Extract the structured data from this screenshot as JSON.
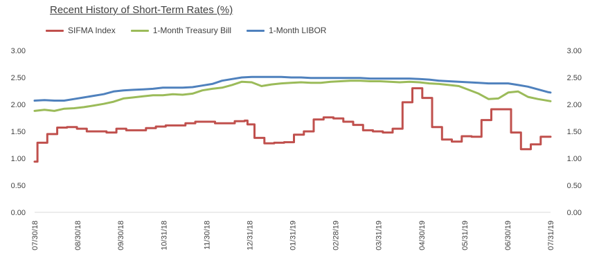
{
  "chart_data": {
    "type": "line",
    "title": "Recent History of Short-Term Rates (%)",
    "xlabel": "",
    "ylabel": "",
    "ylim": [
      0,
      3
    ],
    "y_ticks": [
      "0.00",
      "0.50",
      "1.00",
      "1.50",
      "2.00",
      "2.50",
      "3.00"
    ],
    "y_ticks_right": [
      "0.00",
      "0.50",
      "1.00",
      "1.50",
      "2.00",
      "2.50",
      "3.00"
    ],
    "x_ticks": [
      "07/30/18",
      "08/30/18",
      "09/30/18",
      "10/31/18",
      "11/30/18",
      "12/31/18",
      "01/31/19",
      "02/28/19",
      "03/31/19",
      "04/30/19",
      "05/31/19",
      "06/30/19",
      "07/31/19"
    ],
    "grid": false,
    "legend_position": "top-left",
    "series": [
      {
        "name": "SIFMA Index",
        "color": "#c0504d",
        "step": true,
        "points": [
          [
            "2018-07-30",
            0.94
          ],
          [
            "2018-08-01",
            1.29
          ],
          [
            "2018-08-08",
            1.45
          ],
          [
            "2018-08-15",
            1.57
          ],
          [
            "2018-08-22",
            1.58
          ],
          [
            "2018-08-29",
            1.55
          ],
          [
            "2018-09-05",
            1.5
          ],
          [
            "2018-09-19",
            1.48
          ],
          [
            "2018-09-26",
            1.55
          ],
          [
            "2018-10-03",
            1.52
          ],
          [
            "2018-10-17",
            1.56
          ],
          [
            "2018-10-24",
            1.59
          ],
          [
            "2018-10-31",
            1.61
          ],
          [
            "2018-11-14",
            1.65
          ],
          [
            "2018-11-21",
            1.68
          ],
          [
            "2018-12-05",
            1.65
          ],
          [
            "2018-12-19",
            1.69
          ],
          [
            "2018-12-26",
            1.7
          ],
          [
            "2018-12-28",
            1.63
          ],
          [
            "2019-01-02",
            1.38
          ],
          [
            "2019-01-09",
            1.28
          ],
          [
            "2019-01-16",
            1.29
          ],
          [
            "2019-01-23",
            1.3
          ],
          [
            "2019-01-30",
            1.44
          ],
          [
            "2019-02-06",
            1.5
          ],
          [
            "2019-02-13",
            1.72
          ],
          [
            "2019-02-20",
            1.76
          ],
          [
            "2019-02-27",
            1.74
          ],
          [
            "2019-03-06",
            1.68
          ],
          [
            "2019-03-13",
            1.62
          ],
          [
            "2019-03-20",
            1.52
          ],
          [
            "2019-03-27",
            1.5
          ],
          [
            "2019-04-03",
            1.48
          ],
          [
            "2019-04-10",
            1.55
          ],
          [
            "2019-04-17",
            2.04
          ],
          [
            "2019-04-24",
            2.3
          ],
          [
            "2019-05-01",
            2.12
          ],
          [
            "2019-05-08",
            1.58
          ],
          [
            "2019-05-15",
            1.35
          ],
          [
            "2019-05-22",
            1.31
          ],
          [
            "2019-05-29",
            1.41
          ],
          [
            "2019-06-05",
            1.4
          ],
          [
            "2019-06-12",
            1.71
          ],
          [
            "2019-06-19",
            1.91
          ],
          [
            "2019-07-03",
            1.48
          ],
          [
            "2019-07-10",
            1.17
          ],
          [
            "2019-07-17",
            1.26
          ],
          [
            "2019-07-24",
            1.4
          ],
          [
            "2019-07-31",
            1.4
          ]
        ]
      },
      {
        "name": "1-Month Treasury Bill",
        "color": "#9bbb59",
        "step": false,
        "points": [
          [
            "2018-07-30",
            1.88
          ],
          [
            "2018-08-06",
            1.9
          ],
          [
            "2018-08-13",
            1.88
          ],
          [
            "2018-08-20",
            1.92
          ],
          [
            "2018-08-27",
            1.93
          ],
          [
            "2018-09-03",
            1.95
          ],
          [
            "2018-09-10",
            1.98
          ],
          [
            "2018-09-17",
            2.01
          ],
          [
            "2018-09-24",
            2.05
          ],
          [
            "2018-10-01",
            2.11
          ],
          [
            "2018-10-08",
            2.13
          ],
          [
            "2018-10-15",
            2.15
          ],
          [
            "2018-10-22",
            2.17
          ],
          [
            "2018-10-29",
            2.17
          ],
          [
            "2018-11-05",
            2.19
          ],
          [
            "2018-11-12",
            2.18
          ],
          [
            "2018-11-19",
            2.2
          ],
          [
            "2018-11-26",
            2.26
          ],
          [
            "2018-12-03",
            2.29
          ],
          [
            "2018-12-10",
            2.31
          ],
          [
            "2018-12-17",
            2.36
          ],
          [
            "2018-12-24",
            2.42
          ],
          [
            "2018-12-31",
            2.41
          ],
          [
            "2019-01-07",
            2.34
          ],
          [
            "2019-01-14",
            2.37
          ],
          [
            "2019-01-21",
            2.39
          ],
          [
            "2019-01-28",
            2.4
          ],
          [
            "2019-02-04",
            2.41
          ],
          [
            "2019-02-11",
            2.4
          ],
          [
            "2019-02-18",
            2.4
          ],
          [
            "2019-02-25",
            2.42
          ],
          [
            "2019-03-04",
            2.43
          ],
          [
            "2019-03-11",
            2.44
          ],
          [
            "2019-03-18",
            2.44
          ],
          [
            "2019-03-25",
            2.43
          ],
          [
            "2019-04-01",
            2.43
          ],
          [
            "2019-04-08",
            2.42
          ],
          [
            "2019-04-15",
            2.41
          ],
          [
            "2019-04-22",
            2.42
          ],
          [
            "2019-04-29",
            2.41
          ],
          [
            "2019-05-06",
            2.39
          ],
          [
            "2019-05-13",
            2.38
          ],
          [
            "2019-05-20",
            2.36
          ],
          [
            "2019-05-27",
            2.34
          ],
          [
            "2019-06-03",
            2.27
          ],
          [
            "2019-06-10",
            2.2
          ],
          [
            "2019-06-17",
            2.1
          ],
          [
            "2019-06-24",
            2.11
          ],
          [
            "2019-07-01",
            2.22
          ],
          [
            "2019-07-08",
            2.24
          ],
          [
            "2019-07-15",
            2.14
          ],
          [
            "2019-07-22",
            2.1
          ],
          [
            "2019-07-31",
            2.06
          ]
        ]
      },
      {
        "name": "1-Month LIBOR",
        "color": "#4f81bd",
        "step": false,
        "points": [
          [
            "2018-07-30",
            2.07
          ],
          [
            "2018-08-06",
            2.08
          ],
          [
            "2018-08-13",
            2.07
          ],
          [
            "2018-08-20",
            2.07
          ],
          [
            "2018-08-27",
            2.1
          ],
          [
            "2018-09-03",
            2.13
          ],
          [
            "2018-09-10",
            2.16
          ],
          [
            "2018-09-17",
            2.19
          ],
          [
            "2018-09-24",
            2.24
          ],
          [
            "2018-10-01",
            2.26
          ],
          [
            "2018-10-08",
            2.27
          ],
          [
            "2018-10-15",
            2.28
          ],
          [
            "2018-10-22",
            2.29
          ],
          [
            "2018-10-29",
            2.31
          ],
          [
            "2018-11-05",
            2.31
          ],
          [
            "2018-11-12",
            2.31
          ],
          [
            "2018-11-19",
            2.32
          ],
          [
            "2018-11-26",
            2.35
          ],
          [
            "2018-12-03",
            2.38
          ],
          [
            "2018-12-10",
            2.44
          ],
          [
            "2018-12-17",
            2.47
          ],
          [
            "2018-12-24",
            2.5
          ],
          [
            "2018-12-31",
            2.51
          ],
          [
            "2019-01-07",
            2.51
          ],
          [
            "2019-01-14",
            2.51
          ],
          [
            "2019-01-21",
            2.51
          ],
          [
            "2019-01-28",
            2.5
          ],
          [
            "2019-02-04",
            2.5
          ],
          [
            "2019-02-11",
            2.49
          ],
          [
            "2019-02-18",
            2.49
          ],
          [
            "2019-02-25",
            2.49
          ],
          [
            "2019-03-04",
            2.49
          ],
          [
            "2019-03-11",
            2.49
          ],
          [
            "2019-03-18",
            2.49
          ],
          [
            "2019-03-25",
            2.48
          ],
          [
            "2019-04-01",
            2.48
          ],
          [
            "2019-04-08",
            2.48
          ],
          [
            "2019-04-15",
            2.48
          ],
          [
            "2019-04-22",
            2.48
          ],
          [
            "2019-04-29",
            2.47
          ],
          [
            "2019-05-06",
            2.46
          ],
          [
            "2019-05-13",
            2.44
          ],
          [
            "2019-05-20",
            2.43
          ],
          [
            "2019-05-27",
            2.42
          ],
          [
            "2019-06-03",
            2.41
          ],
          [
            "2019-06-10",
            2.4
          ],
          [
            "2019-06-17",
            2.39
          ],
          [
            "2019-06-24",
            2.39
          ],
          [
            "2019-07-01",
            2.39
          ],
          [
            "2019-07-08",
            2.36
          ],
          [
            "2019-07-15",
            2.33
          ],
          [
            "2019-07-22",
            2.28
          ],
          [
            "2019-07-29",
            2.23
          ],
          [
            "2019-07-31",
            2.22
          ]
        ]
      }
    ]
  }
}
